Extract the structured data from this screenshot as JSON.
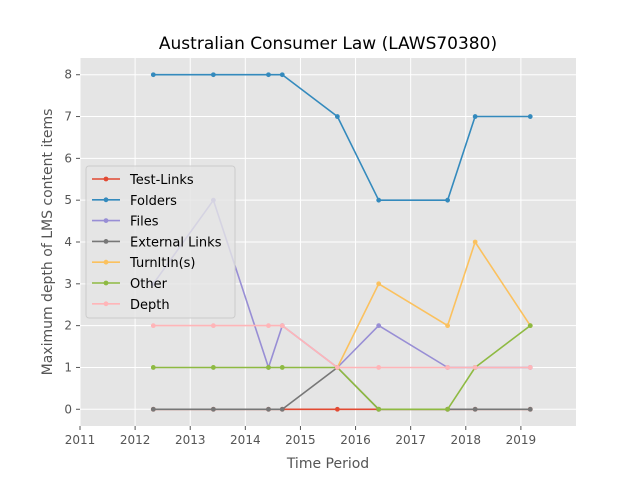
{
  "chart_data": {
    "type": "line",
    "title": "Australian Consumer Law (LAWS70380)",
    "xlabel": "Time Period",
    "ylabel": "Maximum depth of LMS content items",
    "xlim": [
      2011,
      2020
    ],
    "ylim": [
      -0.4,
      8.4
    ],
    "xticks": [
      2011,
      2012,
      2013,
      2014,
      2015,
      2016,
      2017,
      2018,
      2019
    ],
    "yticks": [
      0,
      1,
      2,
      3,
      4,
      5,
      6,
      7,
      8
    ],
    "grid": true,
    "background": "#e5e5e5",
    "legend_position": "center-left",
    "series": [
      {
        "name": "Test-Links",
        "color": "#e24a33",
        "x": [
          2012.33,
          2013.42,
          2014.42,
          2014.67,
          2015.67,
          2016.42,
          2017.67,
          2018.17,
          2019.17
        ],
        "y": [
          0,
          0,
          0,
          0,
          0,
          0,
          0,
          0,
          0
        ]
      },
      {
        "name": "Folders",
        "color": "#348abd",
        "x": [
          2012.33,
          2013.42,
          2014.42,
          2014.67,
          2015.67,
          2016.42,
          2017.67,
          2018.17,
          2019.17
        ],
        "y": [
          8,
          8,
          8,
          8,
          7,
          5,
          5,
          7,
          7
        ]
      },
      {
        "name": "Files",
        "color": "#988ed5",
        "x": [
          2012.33,
          2013.42,
          2014.42,
          2014.67,
          2015.67,
          2016.42,
          2017.67,
          2018.17,
          2019.17
        ],
        "y": [
          3,
          5,
          1,
          2,
          1,
          2,
          1,
          1,
          1
        ]
      },
      {
        "name": "External Links",
        "color": "#777777",
        "x": [
          2012.33,
          2013.42,
          2014.42,
          2014.67,
          2015.67,
          2016.42,
          2017.67,
          2018.17,
          2019.17
        ],
        "y": [
          0,
          0,
          0,
          0,
          1,
          0,
          0,
          0,
          0
        ]
      },
      {
        "name": "TurnItIn(s)",
        "color": "#fbc15e",
        "x": [
          2015.67,
          2016.42,
          2017.67,
          2018.17,
          2019.17
        ],
        "y": [
          1,
          3,
          2,
          4,
          2
        ]
      },
      {
        "name": "Other",
        "color": "#8eba42",
        "x": [
          2012.33,
          2013.42,
          2014.42,
          2014.67,
          2015.67,
          2016.42,
          2017.67,
          2018.17,
          2019.17
        ],
        "y": [
          1,
          1,
          1,
          1,
          1,
          0,
          0,
          1,
          2
        ]
      },
      {
        "name": "Depth",
        "color": "#ffb5b8",
        "x": [
          2012.33,
          2013.42,
          2014.42,
          2014.67,
          2015.67,
          2016.42,
          2017.67,
          2018.17,
          2019.17
        ],
        "y": [
          2,
          2,
          2,
          2,
          1,
          1,
          1,
          1,
          1
        ]
      }
    ]
  }
}
